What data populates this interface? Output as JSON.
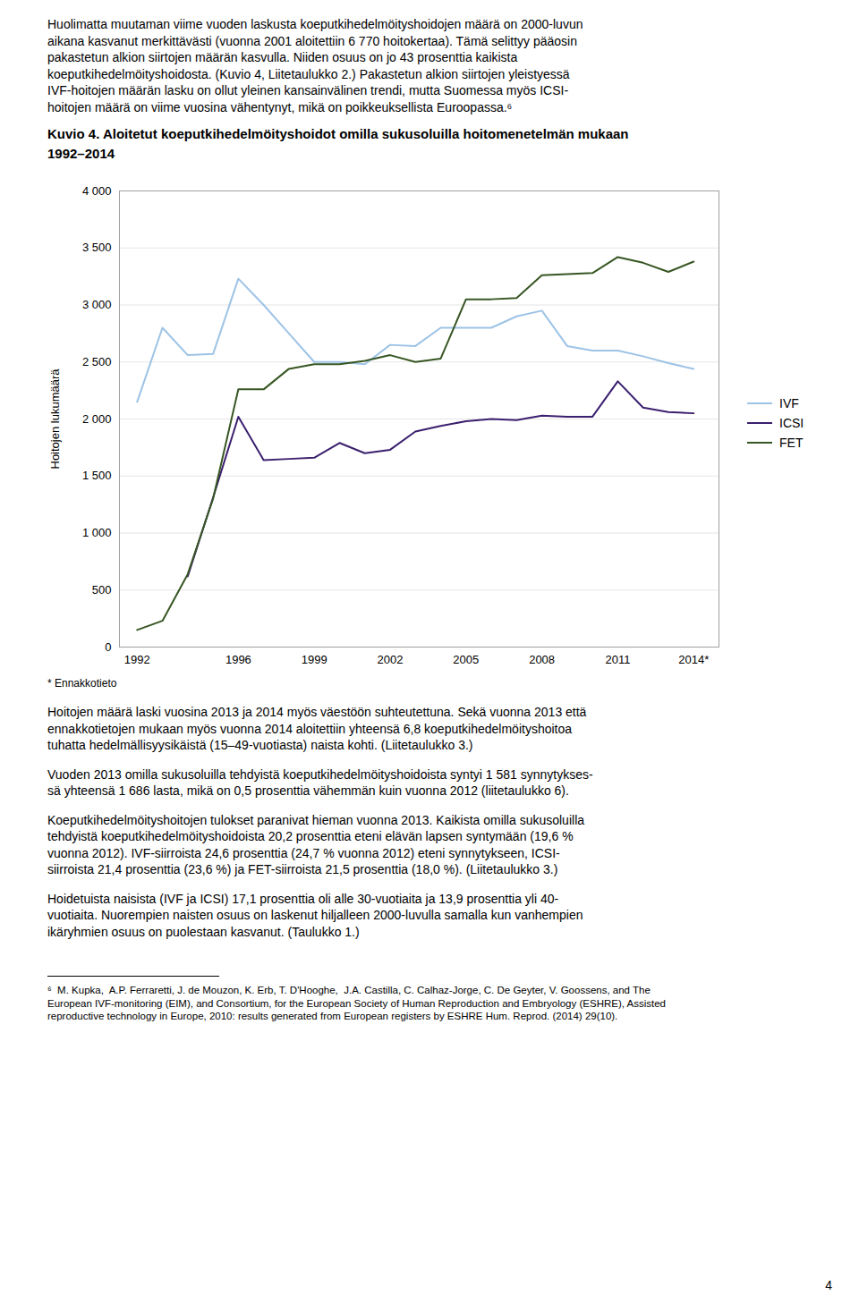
{
  "text_before": [
    "Huolimatta muutaman viime vuoden laskusta koeputkihedelmöityshoidojen määrä on 2000-luvun",
    "aikana kasvanut merkittävästi (vuonna 2001 aloitettiin 6 770 hoitokertaa). Tämä selittyy pääosin",
    "pakastetun alkion siirtojen määrän kasvulla. Niiden osuus on jo 43 prosenttia kaikista",
    "koeputkihedelmöityshoidosta. (Kuvio 4, Liitetaulukko 2.) Pakastetun alkion siirtojen yleistyessä",
    "IVF-hoitojen määrän lasku on ollut yleinen kansainvälinen trendi, mutta Suomessa myös ICSI-",
    "hoitojen määrä on viime vuosina vähentynyt, mikä on poikkeuksellista Euroopassa.⁶"
  ],
  "chart_data": {
    "type": "line",
    "title": "Kuvio 4. Aloitetut koeputkihedelmöityshoidot omilla sukusoluilla hoitomenetelmän mukaan",
    "subtitle": "1992–2014",
    "ylabel": "Hoitojen lukumäärä",
    "x": [
      1992,
      1993,
      1994,
      1995,
      1996,
      1997,
      1998,
      1999,
      2000,
      2001,
      2002,
      2003,
      2004,
      2005,
      2006,
      2007,
      2008,
      2009,
      2010,
      2011,
      2012,
      2013,
      2014
    ],
    "xlim": [
      1991.3,
      2015.0
    ],
    "xticks": [
      1992,
      1996,
      1999,
      2002,
      2005,
      2008,
      2011,
      {
        "value": 2014,
        "label": "2014*"
      }
    ],
    "ylim": [
      0,
      4000
    ],
    "yticks": [
      0,
      500,
      {
        "value": 1000,
        "label": "1 000"
      },
      {
        "value": 1500,
        "label": "1 500"
      },
      {
        "value": 2000,
        "label": "2 000"
      },
      {
        "value": 2500,
        "label": "2 500"
      },
      {
        "value": 3000,
        "label": "3 000"
      },
      {
        "value": 3500,
        "label": "3 500"
      },
      {
        "value": 4000,
        "label": "4 000"
      }
    ],
    "grid": true,
    "legend": "right",
    "annotations": [
      "* Ennakkotieto"
    ],
    "series": [
      {
        "name": "IVF",
        "color": "#9DC3E6",
        "values": [
          2150,
          2800,
          2560,
          2570,
          3230,
          3000,
          2750,
          2500,
          2500,
          2480,
          2650,
          2640,
          2800,
          2800,
          2800,
          2900,
          2950,
          2640,
          2600,
          2600,
          2550,
          2490,
          2440
        ]
      },
      {
        "name": "ICSI",
        "color": "#3B1F6E",
        "values": [
          null,
          null,
          620,
          1310,
          2020,
          1640,
          1650,
          1660,
          1790,
          1700,
          1730,
          1890,
          1940,
          1980,
          2000,
          1990,
          2030,
          2020,
          2020,
          2330,
          2100,
          2060,
          2050
        ]
      },
      {
        "name": "FET",
        "color": "#375623",
        "values": [
          150,
          230,
          640,
          1300,
          2260,
          2260,
          2440,
          2480,
          2480,
          2510,
          2560,
          2500,
          2530,
          3050,
          3050,
          3060,
          3260,
          3270,
          3280,
          3420,
          3370,
          3290,
          3380
        ]
      }
    ]
  },
  "text_after": [
    [
      "Hoitojen määrä laski vuosina 2013 ja 2014 myös väestöön suhteutettuna. Sekä vuonna 2013 että",
      "ennakkotietojen mukaan myös vuonna 2014 aloitettiin yhteensä 6,8 koeputkihedelmöityshoitoa",
      "tuhatta hedelmällisyysikäistä (15–49-vuotiasta) naista kohti. (Liitetaulukko 3.)"
    ],
    [
      "Vuoden 2013 omilla sukusoluilla tehdyistä koeputkihedelmöityshoidoista syntyi 1 581 synnytykses-",
      "sä yhteensä 1 686 lasta, mikä on 0,5 prosenttia vähemmän kuin vuonna 2012 (liitetaulukko 6)."
    ],
    [
      "Koeputkihedelmöityshoitojen tulokset paranivat hieman vuonna 2013. Kaikista omilla sukusoluilla",
      "tehdyistä koeputkihedelmöityshoidoista 20,2 prosenttia eteni elävän lapsen syntymään (19,6 %",
      "vuonna 2012). IVF-siirroista 24,6 prosenttia (24,7 % vuonna 2012) eteni synnytykseen, ICSI-",
      "siirroista 21,4 prosenttia (23,6 %) ja FET-siirroista 21,5 prosenttia (18,0 %). (Liitetaulukko 3.)"
    ],
    [
      "Hoidetuista naisista (IVF ja ICSI) 17,1 prosenttia oli alle 30-vuotiaita ja 13,9 prosenttia yli 40-",
      "vuotiaita. Nuorempien naisten osuus on laskenut hiljalleen 2000-luvulla samalla kun vanhempien",
      "ikäryhmien osuus on puolestaan kasvanut. (Taulukko 1.)"
    ]
  ],
  "footnotes": [
    "⁶  M. Kupka,  A.P. Ferraretti, J. de Mouzon, K. Erb, T. D'Hooghe,  J.A. Castilla, C. Calhaz-Jorge, C. De Geyter, V. Goossens, and The",
    "European IVF-monitoring (EIM), and Consortium, for the European Society of Human Reproduction and Embryology (ESHRE), Assisted",
    "reproductive technology in Europe, 2010: results generated from European registers by ESHRE Hum. Reprod. (2014) 29(10)."
  ],
  "page_number": "4"
}
